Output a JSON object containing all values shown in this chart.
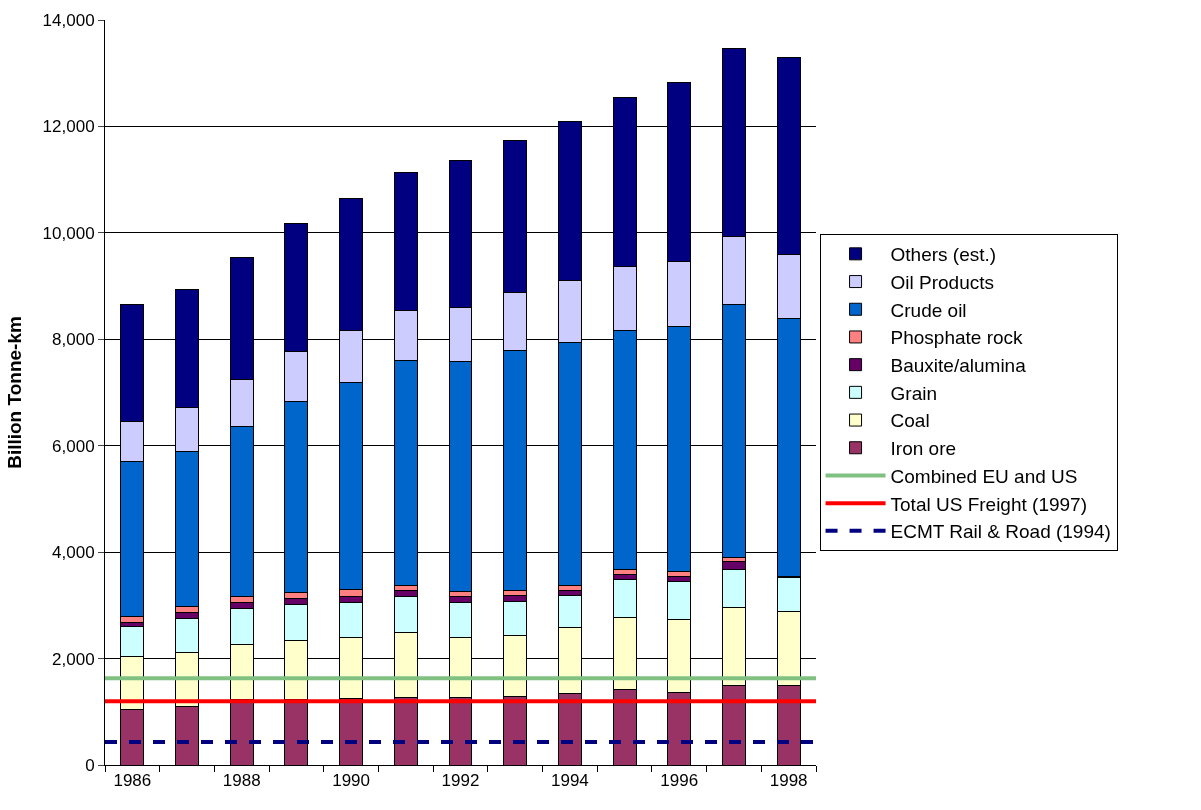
{
  "chart_data": {
    "type": "bar",
    "stacked": true,
    "ylabel": "Billion Tonne-km",
    "categories": [
      "1986",
      null,
      "1988",
      null,
      "1990",
      null,
      "1992",
      null,
      "1994",
      null,
      "1996",
      null,
      "1998"
    ],
    "series": [
      {
        "name": "Iron ore",
        "color": "#993366",
        "values": [
          1050,
          1100,
          1230,
          1240,
          1250,
          1260,
          1270,
          1280,
          1340,
          1410,
          1370,
          1490,
          1490
        ]
      },
      {
        "name": "Coal",
        "color": "#ffffcc",
        "values": [
          980,
          1010,
          1030,
          1100,
          1140,
          1230,
          1120,
          1150,
          1240,
          1360,
          1360,
          1470,
          1400
        ]
      },
      {
        "name": "Grain",
        "color": "#ccffff",
        "values": [
          570,
          640,
          680,
          670,
          660,
          680,
          670,
          640,
          610,
          710,
          710,
          720,
          630
        ]
      },
      {
        "name": "Bauxite/alumina",
        "color": "#660066",
        "values": [
          80,
          120,
          110,
          110,
          120,
          100,
          110,
          110,
          90,
          100,
          100,
          150,
          10
        ]
      },
      {
        "name": "Phosphate rock",
        "color": "#ff8080",
        "values": [
          110,
          110,
          120,
          120,
          130,
          100,
          90,
          90,
          90,
          100,
          90,
          70,
          10
        ]
      },
      {
        "name": "Crude oil",
        "color": "#0066cc",
        "values": [
          2920,
          2920,
          3200,
          3600,
          3890,
          4240,
          4330,
          4520,
          4570,
          4490,
          4610,
          4750,
          4860
        ]
      },
      {
        "name": "Oil Products",
        "color": "#ccccff",
        "values": [
          740,
          820,
          880,
          930,
          970,
          930,
          1010,
          1080,
          1160,
          1200,
          1230,
          1280,
          1200
        ]
      },
      {
        "name": "Others (est.)",
        "color": "#000080",
        "values": [
          2210,
          2210,
          2280,
          2400,
          2480,
          2590,
          2760,
          2870,
          3000,
          3180,
          3360,
          3530,
          3700
        ]
      }
    ],
    "ref_lines": [
      {
        "axis": "y",
        "value": 1630,
        "label": "Combined EU and US",
        "color": "#80c080",
        "line_style": "solid"
      },
      {
        "axis": "y",
        "value": 1200,
        "label": "Total US Freight (1997)",
        "color": "#ff0000",
        "line_style": "solid"
      },
      {
        "axis": "y",
        "value": 430,
        "label": "ECMT Rail & Road (1994)",
        "color": "#000080",
        "line_style": "dashed"
      }
    ],
    "ylim": [
      0,
      14000
    ],
    "yticks": [
      {
        "value": 0,
        "label": "0"
      },
      {
        "value": 2000,
        "label": "2,000"
      },
      {
        "value": 4000,
        "label": "4,000"
      },
      {
        "value": 6000,
        "label": "6,000"
      },
      {
        "value": 8000,
        "label": "8,000"
      },
      {
        "value": 10000,
        "label": "10,000"
      },
      {
        "value": 12000,
        "label": "12,000"
      },
      {
        "value": 14000,
        "label": "14,000"
      }
    ],
    "grid": "y",
    "legend": "right"
  }
}
